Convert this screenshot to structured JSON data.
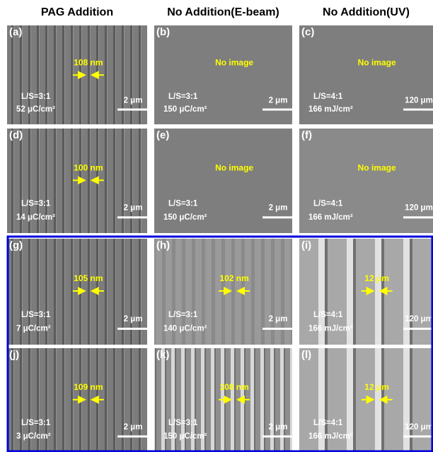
{
  "headers": [
    "PAG Addition",
    "No Addition(E-beam)",
    "No Addition(UV)"
  ],
  "panels": [
    {
      "label": "(a)",
      "note": "108 nm",
      "ls": "L/S=3:1",
      "dose": "52 μC/cm²",
      "scale": "2 μm"
    },
    {
      "label": "(b)",
      "note": "No image",
      "ls": "L/S=3:1",
      "dose": "150 μC/cm²",
      "scale": "2 μm"
    },
    {
      "label": "(c)",
      "note": "No image",
      "ls": "L/S=4:1",
      "dose": "166 mJ/cm²",
      "scale": "120 μm"
    },
    {
      "label": "(d)",
      "note": "100 nm",
      "ls": "L/S=3:1",
      "dose": "14 μC/cm²",
      "scale": "2 μm"
    },
    {
      "label": "(e)",
      "note": "No image",
      "ls": "L/S=3:1",
      "dose": "150 μC/cm²",
      "scale": "2 μm"
    },
    {
      "label": "(f)",
      "note": "No image",
      "ls": "L/S=4:1",
      "dose": "166 mJ/cm²",
      "scale": "120 μm"
    },
    {
      "label": "(g)",
      "note": "105 nm",
      "ls": "L/S=3:1",
      "dose": "7 μC/cm²",
      "scale": "2 μm"
    },
    {
      "label": "(h)",
      "note": "102 nm",
      "ls": "L/S=3:1",
      "dose": "140 μC/cm²",
      "scale": "2 μm"
    },
    {
      "label": "(i)",
      "note": "12 μm",
      "ls": "L/S=4:1",
      "dose": "166 mJ/cm²",
      "scale": "120 μm"
    },
    {
      "label": "(j)",
      "note": "109 nm",
      "ls": "L/S=3:1",
      "dose": "3 μC/cm²",
      "scale": "2 μm"
    },
    {
      "label": "(k)",
      "note": "108 nm",
      "ls": "L/S=3:1",
      "dose": "150 μC/cm²",
      "scale": "2 μm"
    },
    {
      "label": "(l)",
      "note": "12 μm",
      "ls": "L/S=4:1",
      "dose": "166 mJ/cm²",
      "scale": "120 μm"
    }
  ]
}
